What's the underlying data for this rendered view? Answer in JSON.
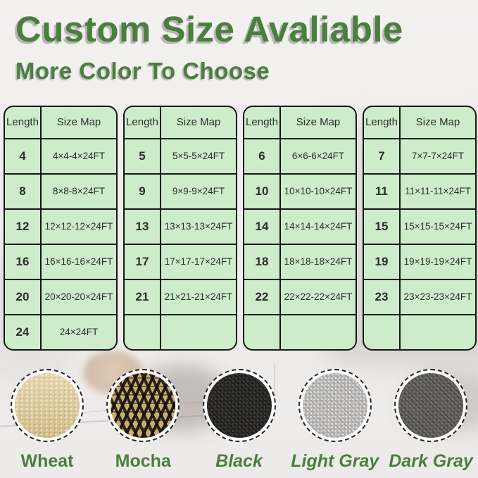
{
  "title": "Custom Size Avaliable",
  "subtitle": "More Color To Choose",
  "colors": {
    "accent_green": "#4a7f3f",
    "table_bg": "#cdecca",
    "table_border": "#161616",
    "title_shadow": "#b7b5b3",
    "swatch_wheat": "#dcc68e",
    "swatch_mocha_base": "#c9ac70",
    "swatch_mocha_dark": "#14100c",
    "swatch_black": "#2d2c2a",
    "swatch_light_gray": "#bbbab8",
    "swatch_dark_gray": "#646260"
  },
  "tables": [
    {
      "headers": [
        "Length",
        "Size Map"
      ],
      "rows": [
        [
          "4",
          "4×4-4×24FT"
        ],
        [
          "8",
          "8×8-8×24FT"
        ],
        [
          "12",
          "12×12-12×24FT"
        ],
        [
          "16",
          "16×16-16×24FT"
        ],
        [
          "20",
          "20×20-20×24FT"
        ],
        [
          "24",
          "24×24FT"
        ]
      ]
    },
    {
      "headers": [
        "Length",
        "Size Map"
      ],
      "rows": [
        [
          "5",
          "5×5-5×24FT"
        ],
        [
          "9",
          "9×9-9×24FT"
        ],
        [
          "13",
          "13×13-13×24FT"
        ],
        [
          "17",
          "17×17-17×24FT"
        ],
        [
          "21",
          "21×21-21×24FT"
        ],
        [
          "",
          ""
        ]
      ]
    },
    {
      "headers": [
        "Length",
        "Size Map"
      ],
      "rows": [
        [
          "6",
          "6×6-6×24FT"
        ],
        [
          "10",
          "10×10-10×24FT"
        ],
        [
          "14",
          "14×14-14×24FT"
        ],
        [
          "18",
          "18×18-18×24FT"
        ],
        [
          "22",
          "22×22-22×24FT"
        ],
        [
          "",
          ""
        ]
      ]
    },
    {
      "headers": [
        "Length",
        "Size Map"
      ],
      "rows": [
        [
          "7",
          "7×7-7×24FT"
        ],
        [
          "11",
          "11×11-11×24FT"
        ],
        [
          "15",
          "15×15-15×24FT"
        ],
        [
          "19",
          "19×19-19×24FT"
        ],
        [
          "23",
          "23×23-23×24FT"
        ],
        [
          "",
          ""
        ]
      ]
    }
  ],
  "swatches": [
    {
      "label": "Wheat",
      "style": "wheat",
      "italic": false
    },
    {
      "label": "Mocha",
      "style": "mocha",
      "italic": false
    },
    {
      "label": "Black",
      "style": "black",
      "italic": true
    },
    {
      "label": "Light Gray",
      "style": "light-gray",
      "italic": true
    },
    {
      "label": "Dark Gray",
      "style": "dark-gray",
      "italic": true
    }
  ]
}
